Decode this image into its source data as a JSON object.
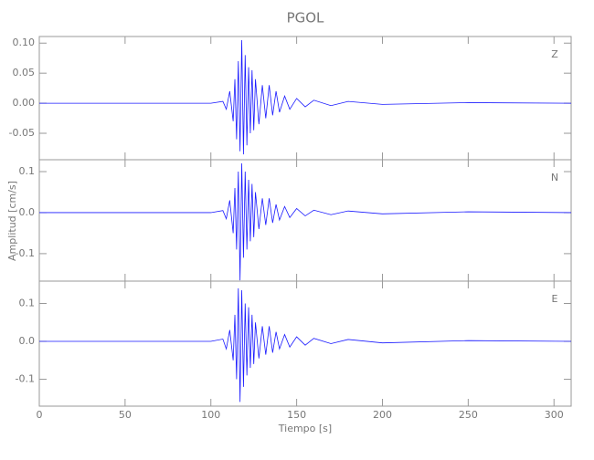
{
  "chart_data": [
    {
      "type": "line",
      "title": "PGOL",
      "label": "Z",
      "color": "#1a1aff",
      "x": [
        0,
        30,
        100,
        107,
        109,
        111,
        113,
        114,
        115,
        116,
        117,
        118,
        119,
        120,
        121,
        122,
        123,
        124,
        125,
        126,
        128,
        130,
        132,
        134,
        136,
        138,
        140,
        143,
        146,
        150,
        155,
        160,
        170,
        180,
        200,
        250,
        310
      ],
      "values": [
        0,
        0,
        0,
        0.003,
        -0.01,
        0.02,
        -0.03,
        0.04,
        -0.06,
        0.07,
        -0.08,
        0.105,
        -0.085,
        0.08,
        -0.07,
        0.06,
        -0.05,
        0.055,
        -0.045,
        0.04,
        -0.035,
        0.03,
        -0.025,
        0.03,
        -0.02,
        0.02,
        -0.015,
        0.012,
        -0.01,
        0.008,
        -0.006,
        0.005,
        -0.004,
        0.003,
        -0.002,
        0.001,
        0
      ],
      "xlim": [
        0,
        310
      ],
      "xticks": [
        0,
        50,
        100,
        150,
        200,
        250,
        300
      ],
      "ylim": [
        -0.094,
        0.111
      ],
      "yticks": [
        -0.05,
        {
          "value": 0,
          "label": "0.00"
        },
        0.05,
        {
          "value": 0.1,
          "label": "0.10"
        }
      ]
    },
    {
      "type": "line",
      "ylabel": "Amplitud [cm/s]",
      "label": "N",
      "color": "#1a1aff",
      "x": [
        0,
        30,
        100,
        107,
        109,
        111,
        113,
        114,
        115,
        116,
        117,
        118,
        119,
        120,
        121,
        122,
        123,
        124,
        125,
        126,
        128,
        130,
        132,
        134,
        136,
        138,
        140,
        143,
        146,
        150,
        155,
        160,
        170,
        180,
        200,
        250,
        310
      ],
      "values": [
        0,
        0,
        0,
        0.005,
        -0.015,
        0.03,
        -0.05,
        0.06,
        -0.09,
        0.1,
        -0.165,
        0.12,
        -0.11,
        0.1,
        -0.09,
        0.08,
        -0.07,
        0.07,
        -0.06,
        0.05,
        -0.04,
        0.035,
        -0.03,
        0.035,
        -0.025,
        0.02,
        -0.018,
        0.015,
        -0.012,
        0.01,
        -0.008,
        0.006,
        -0.005,
        0.004,
        -0.003,
        0.002,
        0
      ],
      "xlim": [
        0,
        310
      ],
      "xticks": [
        0,
        50,
        100,
        150,
        200,
        250,
        300
      ],
      "ylim": [
        -0.167,
        0.129
      ],
      "yticks": [
        -0.1,
        {
          "value": 0,
          "label": "0.0"
        },
        0.1
      ]
    },
    {
      "type": "line",
      "xlabel": "Tiempo [s]",
      "label": "E",
      "color": "#1a1aff",
      "x": [
        0,
        30,
        100,
        107,
        109,
        111,
        113,
        114,
        115,
        116,
        117,
        118,
        119,
        120,
        121,
        122,
        123,
        124,
        125,
        126,
        128,
        130,
        132,
        134,
        136,
        138,
        140,
        143,
        146,
        150,
        155,
        160,
        170,
        180,
        200,
        250,
        310
      ],
      "values": [
        0,
        0,
        0,
        0.006,
        -0.02,
        0.03,
        -0.05,
        0.07,
        -0.1,
        0.14,
        -0.16,
        0.135,
        -0.12,
        0.1,
        -0.09,
        0.09,
        -0.07,
        0.07,
        -0.06,
        0.05,
        -0.045,
        0.04,
        -0.035,
        0.04,
        -0.03,
        0.025,
        -0.02,
        0.018,
        -0.015,
        0.012,
        -0.01,
        0.008,
        -0.006,
        0.005,
        -0.004,
        0.002,
        0
      ],
      "xlim": [
        0,
        310
      ],
      "xticks": [
        0,
        50,
        100,
        150,
        200,
        250,
        300
      ],
      "ylim": [
        -0.171,
        0.159
      ],
      "yticks": [
        -0.1,
        {
          "value": 0,
          "label": "0.0"
        },
        0.1
      ]
    }
  ]
}
